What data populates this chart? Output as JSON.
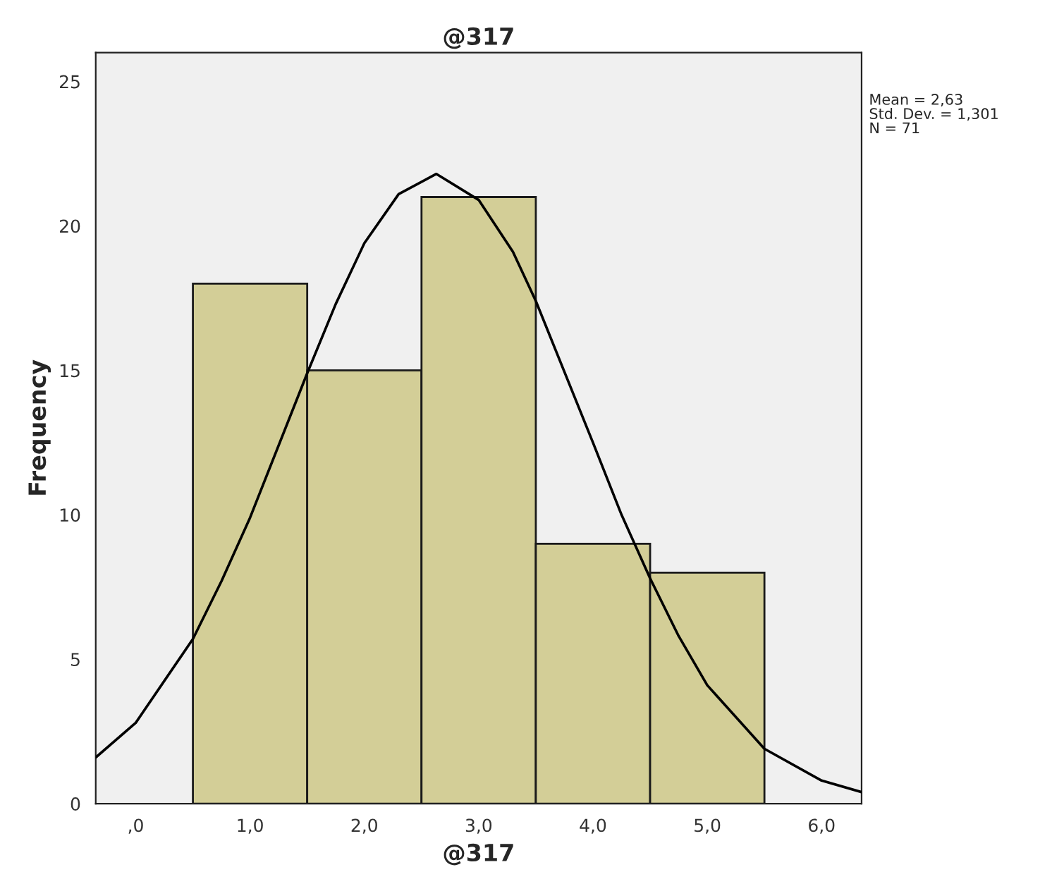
{
  "chart_data": {
    "type": "histogram",
    "title": "@317",
    "xlabel": "@317",
    "ylabel": "Frequency",
    "bins": [
      0.5,
      1.5,
      2.5,
      3.5,
      4.5,
      5.5
    ],
    "values": [
      18,
      15,
      21,
      9,
      8
    ],
    "color": "#d3ce97",
    "series": [
      {
        "type": "line",
        "color": "#000000",
        "x": [
          -0.35,
          0,
          0.5,
          0.75,
          1.0,
          1.5,
          1.75,
          2.0,
          2.3,
          2.63,
          3.0,
          3.3,
          3.5,
          4.0,
          4.25,
          4.5,
          4.75,
          5.0,
          5.5,
          6.0,
          6.35
        ],
        "values": [
          1.6,
          2.8,
          5.7,
          7.7,
          9.9,
          14.9,
          17.3,
          19.4,
          21.1,
          21.8,
          20.9,
          19.1,
          17.4,
          12.5,
          10.0,
          7.8,
          5.8,
          4.1,
          1.9,
          0.8,
          0.4
        ]
      }
    ],
    "xlim": [
      -0.35,
      6.35
    ],
    "ylim": [
      0,
      26
    ],
    "xticks": [
      {
        "value": 0,
        "label": ",0"
      },
      {
        "value": 1,
        "label": "1,0"
      },
      {
        "value": 2,
        "label": "2,0"
      },
      {
        "value": 3,
        "label": "3,0"
      },
      {
        "value": 4,
        "label": "4,0"
      },
      {
        "value": 5,
        "label": "5,0"
      },
      {
        "value": 6,
        "label": "6,0"
      }
    ],
    "yticks": [
      0,
      5,
      10,
      15,
      20,
      25
    ],
    "annotations": [
      "Mean = 2,63",
      "Std. Dev. = 1,301",
      "N = 71"
    ],
    "grid": false,
    "legend": false,
    "marker": "none",
    "line_style": "solid"
  }
}
